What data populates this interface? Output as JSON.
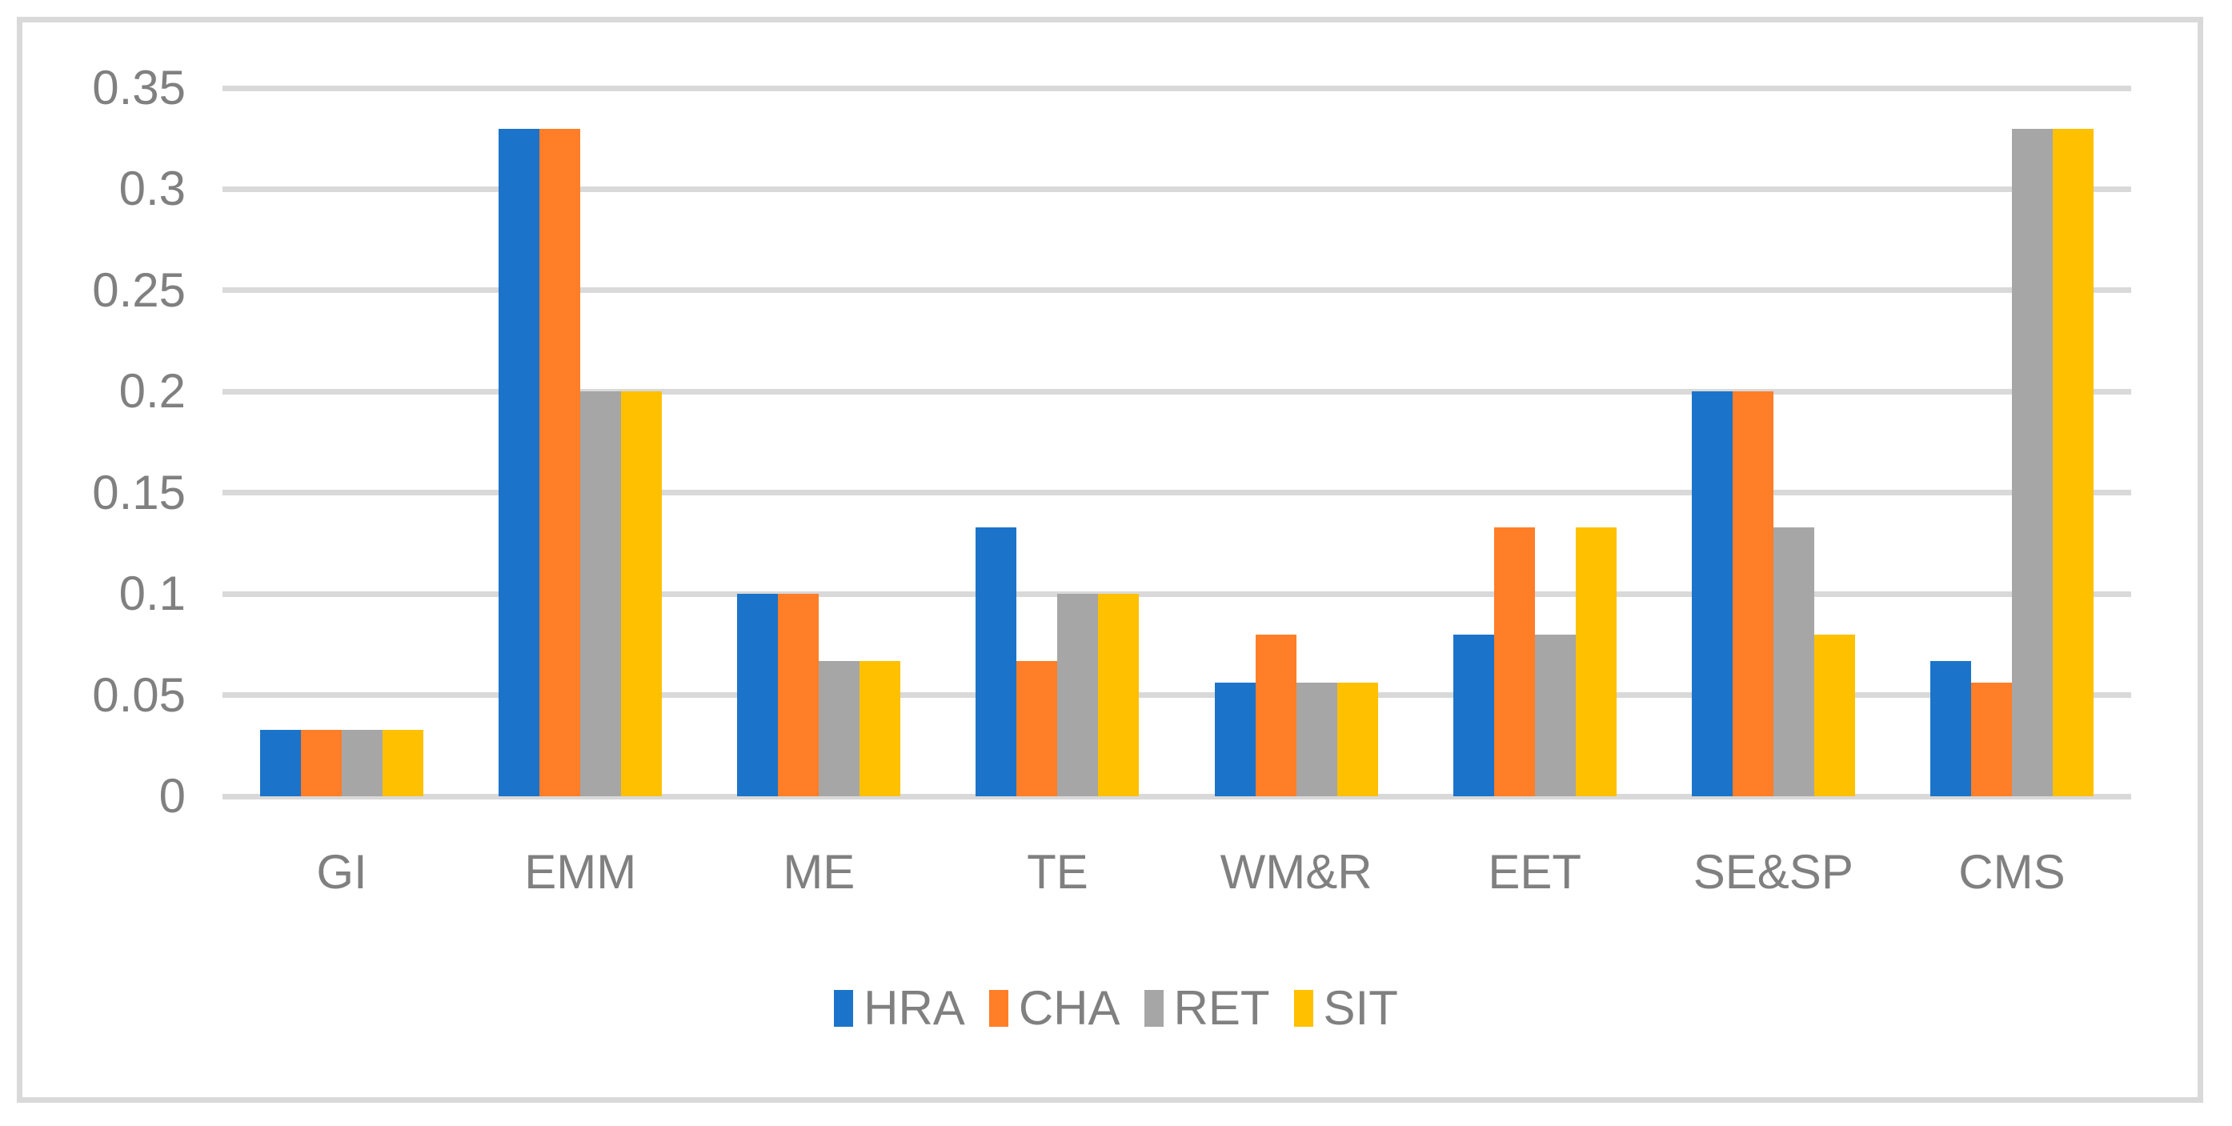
{
  "chart_data": {
    "type": "bar",
    "categories": [
      "GI",
      "EMM",
      "ME",
      "TE",
      "WM&R",
      "EET",
      "SE&SP",
      "CMS"
    ],
    "series": [
      {
        "name": "HRA",
        "color": "#1B74C9",
        "values": [
          0.033,
          0.33,
          0.1,
          0.133,
          0.056,
          0.08,
          0.2,
          0.067
        ]
      },
      {
        "name": "CHA",
        "color": "#FF7E27",
        "values": [
          0.033,
          0.33,
          0.1,
          0.067,
          0.08,
          0.133,
          0.2,
          0.056
        ]
      },
      {
        "name": "RET",
        "color": "#A6A6A6",
        "values": [
          0.033,
          0.2,
          0.067,
          0.1,
          0.056,
          0.08,
          0.133,
          0.33
        ]
      },
      {
        "name": "SIT",
        "color": "#FFC000",
        "values": [
          0.033,
          0.2,
          0.067,
          0.1,
          0.056,
          0.133,
          0.08,
          0.33
        ]
      }
    ],
    "y_ticks": [
      0,
      0.05,
      0.1,
      0.15,
      0.2,
      0.25,
      0.3,
      0.35
    ],
    "y_tick_labels": [
      "0",
      "0.05",
      "0.1",
      "0.15",
      "0.2",
      "0.25",
      "0.3",
      "0.35"
    ],
    "ylim": [
      0,
      0.35
    ],
    "grid": true,
    "legend_position": "bottom",
    "legend_labels": [
      "HRA",
      "CHA",
      "RET",
      "SIT"
    ]
  },
  "styles": {
    "grid_color": "#D9D9D9",
    "frame_color": "#D9D9D9",
    "text_color": "#808080",
    "background": "#FFFFFF"
  }
}
